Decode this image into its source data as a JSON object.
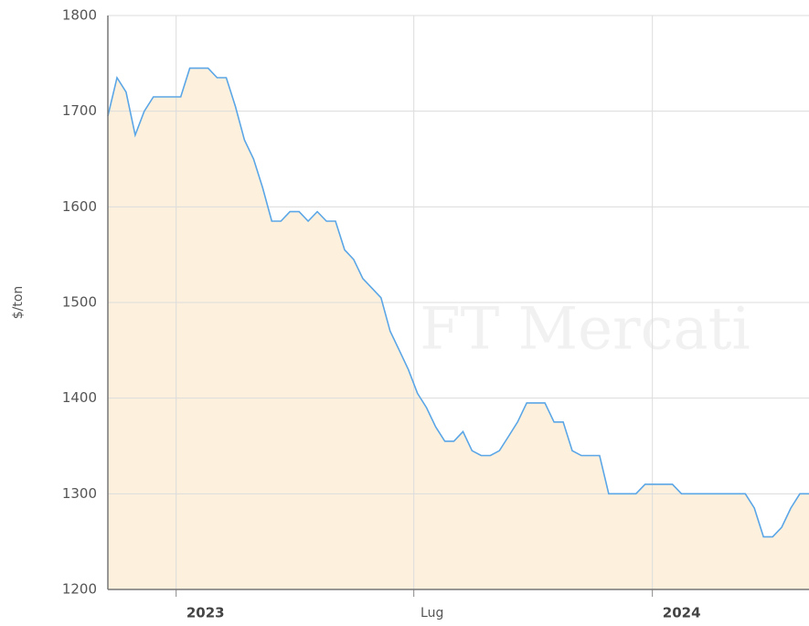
{
  "chart_data": {
    "type": "area",
    "y_label": "$/ton",
    "watermark": "FT Mercati",
    "values": [
      1695,
      1735,
      1720,
      1675,
      1700,
      1715,
      1715,
      1715,
      1715,
      1745,
      1745,
      1745,
      1735,
      1735,
      1705,
      1670,
      1650,
      1620,
      1585,
      1585,
      1595,
      1595,
      1585,
      1595,
      1585,
      1585,
      1555,
      1545,
      1525,
      1515,
      1505,
      1470,
      1450,
      1430,
      1405,
      1390,
      1370,
      1355,
      1355,
      1365,
      1345,
      1340,
      1340,
      1345,
      1360,
      1375,
      1395,
      1395,
      1395,
      1375,
      1375,
      1345,
      1340,
      1340,
      1340,
      1300,
      1300,
      1300,
      1300,
      1310,
      1310,
      1310,
      1310,
      1300,
      1300,
      1300,
      1300,
      1300,
      1300,
      1300,
      1300,
      1285,
      1255,
      1255,
      1265,
      1285,
      1300,
      1300
    ],
    "color": "#5ba6e6",
    "fill": "#fdf1de",
    "xlim": [
      0,
      77
    ],
    "xticks": [
      {
        "value": 7.5,
        "label": "2023"
      },
      {
        "value": 33.6,
        "label": "Lug"
      },
      {
        "value": 59.8,
        "label": "2024"
      }
    ],
    "ylim": [
      1200,
      1800
    ],
    "yticks": [
      1200,
      1300,
      1400,
      1500,
      1600,
      1700,
      1800
    ],
    "grid": true
  }
}
